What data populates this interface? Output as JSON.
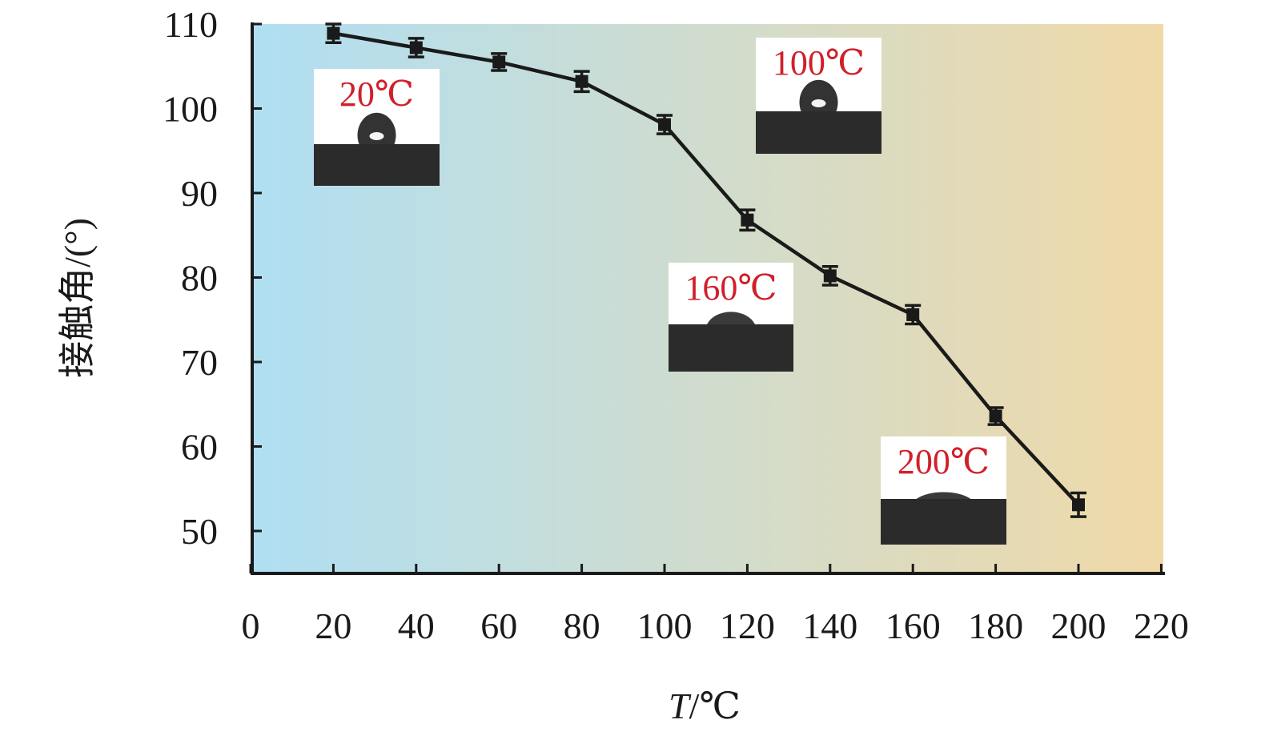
{
  "chart_data": {
    "type": "line",
    "title": "",
    "xlabel_italic": "T",
    "xlabel_rest": "/℃",
    "ylabel": "接触角/(°)",
    "xlim": [
      0,
      220
    ],
    "ylim": [
      45,
      110
    ],
    "xticks": [
      0,
      20,
      40,
      60,
      80,
      100,
      120,
      140,
      160,
      180,
      200,
      220
    ],
    "yticks": [
      50,
      60,
      70,
      80,
      90,
      100,
      110
    ],
    "grid": false,
    "legend": "none",
    "background_gradient": [
      "#b0dff3",
      "#f0d9a8"
    ],
    "series": [
      {
        "x": [
          20,
          40,
          60,
          80,
          100,
          120,
          140,
          160,
          180,
          200
        ],
        "y": [
          108.9,
          107.2,
          105.5,
          103.2,
          98.1,
          86.8,
          80.2,
          75.6,
          63.6,
          53.1
        ],
        "error": [
          1.1,
          1.1,
          1.0,
          1.2,
          1.1,
          1.2,
          1.1,
          1.1,
          1.0,
          1.4
        ],
        "color": "#1a1a1a",
        "marker": "square"
      }
    ],
    "insets": [
      {
        "label": "20℃",
        "drop": "tall"
      },
      {
        "label": "100℃",
        "drop": "tall"
      },
      {
        "label": "160℃",
        "drop": "medium"
      },
      {
        "label": "200℃",
        "drop": "flat"
      }
    ]
  }
}
